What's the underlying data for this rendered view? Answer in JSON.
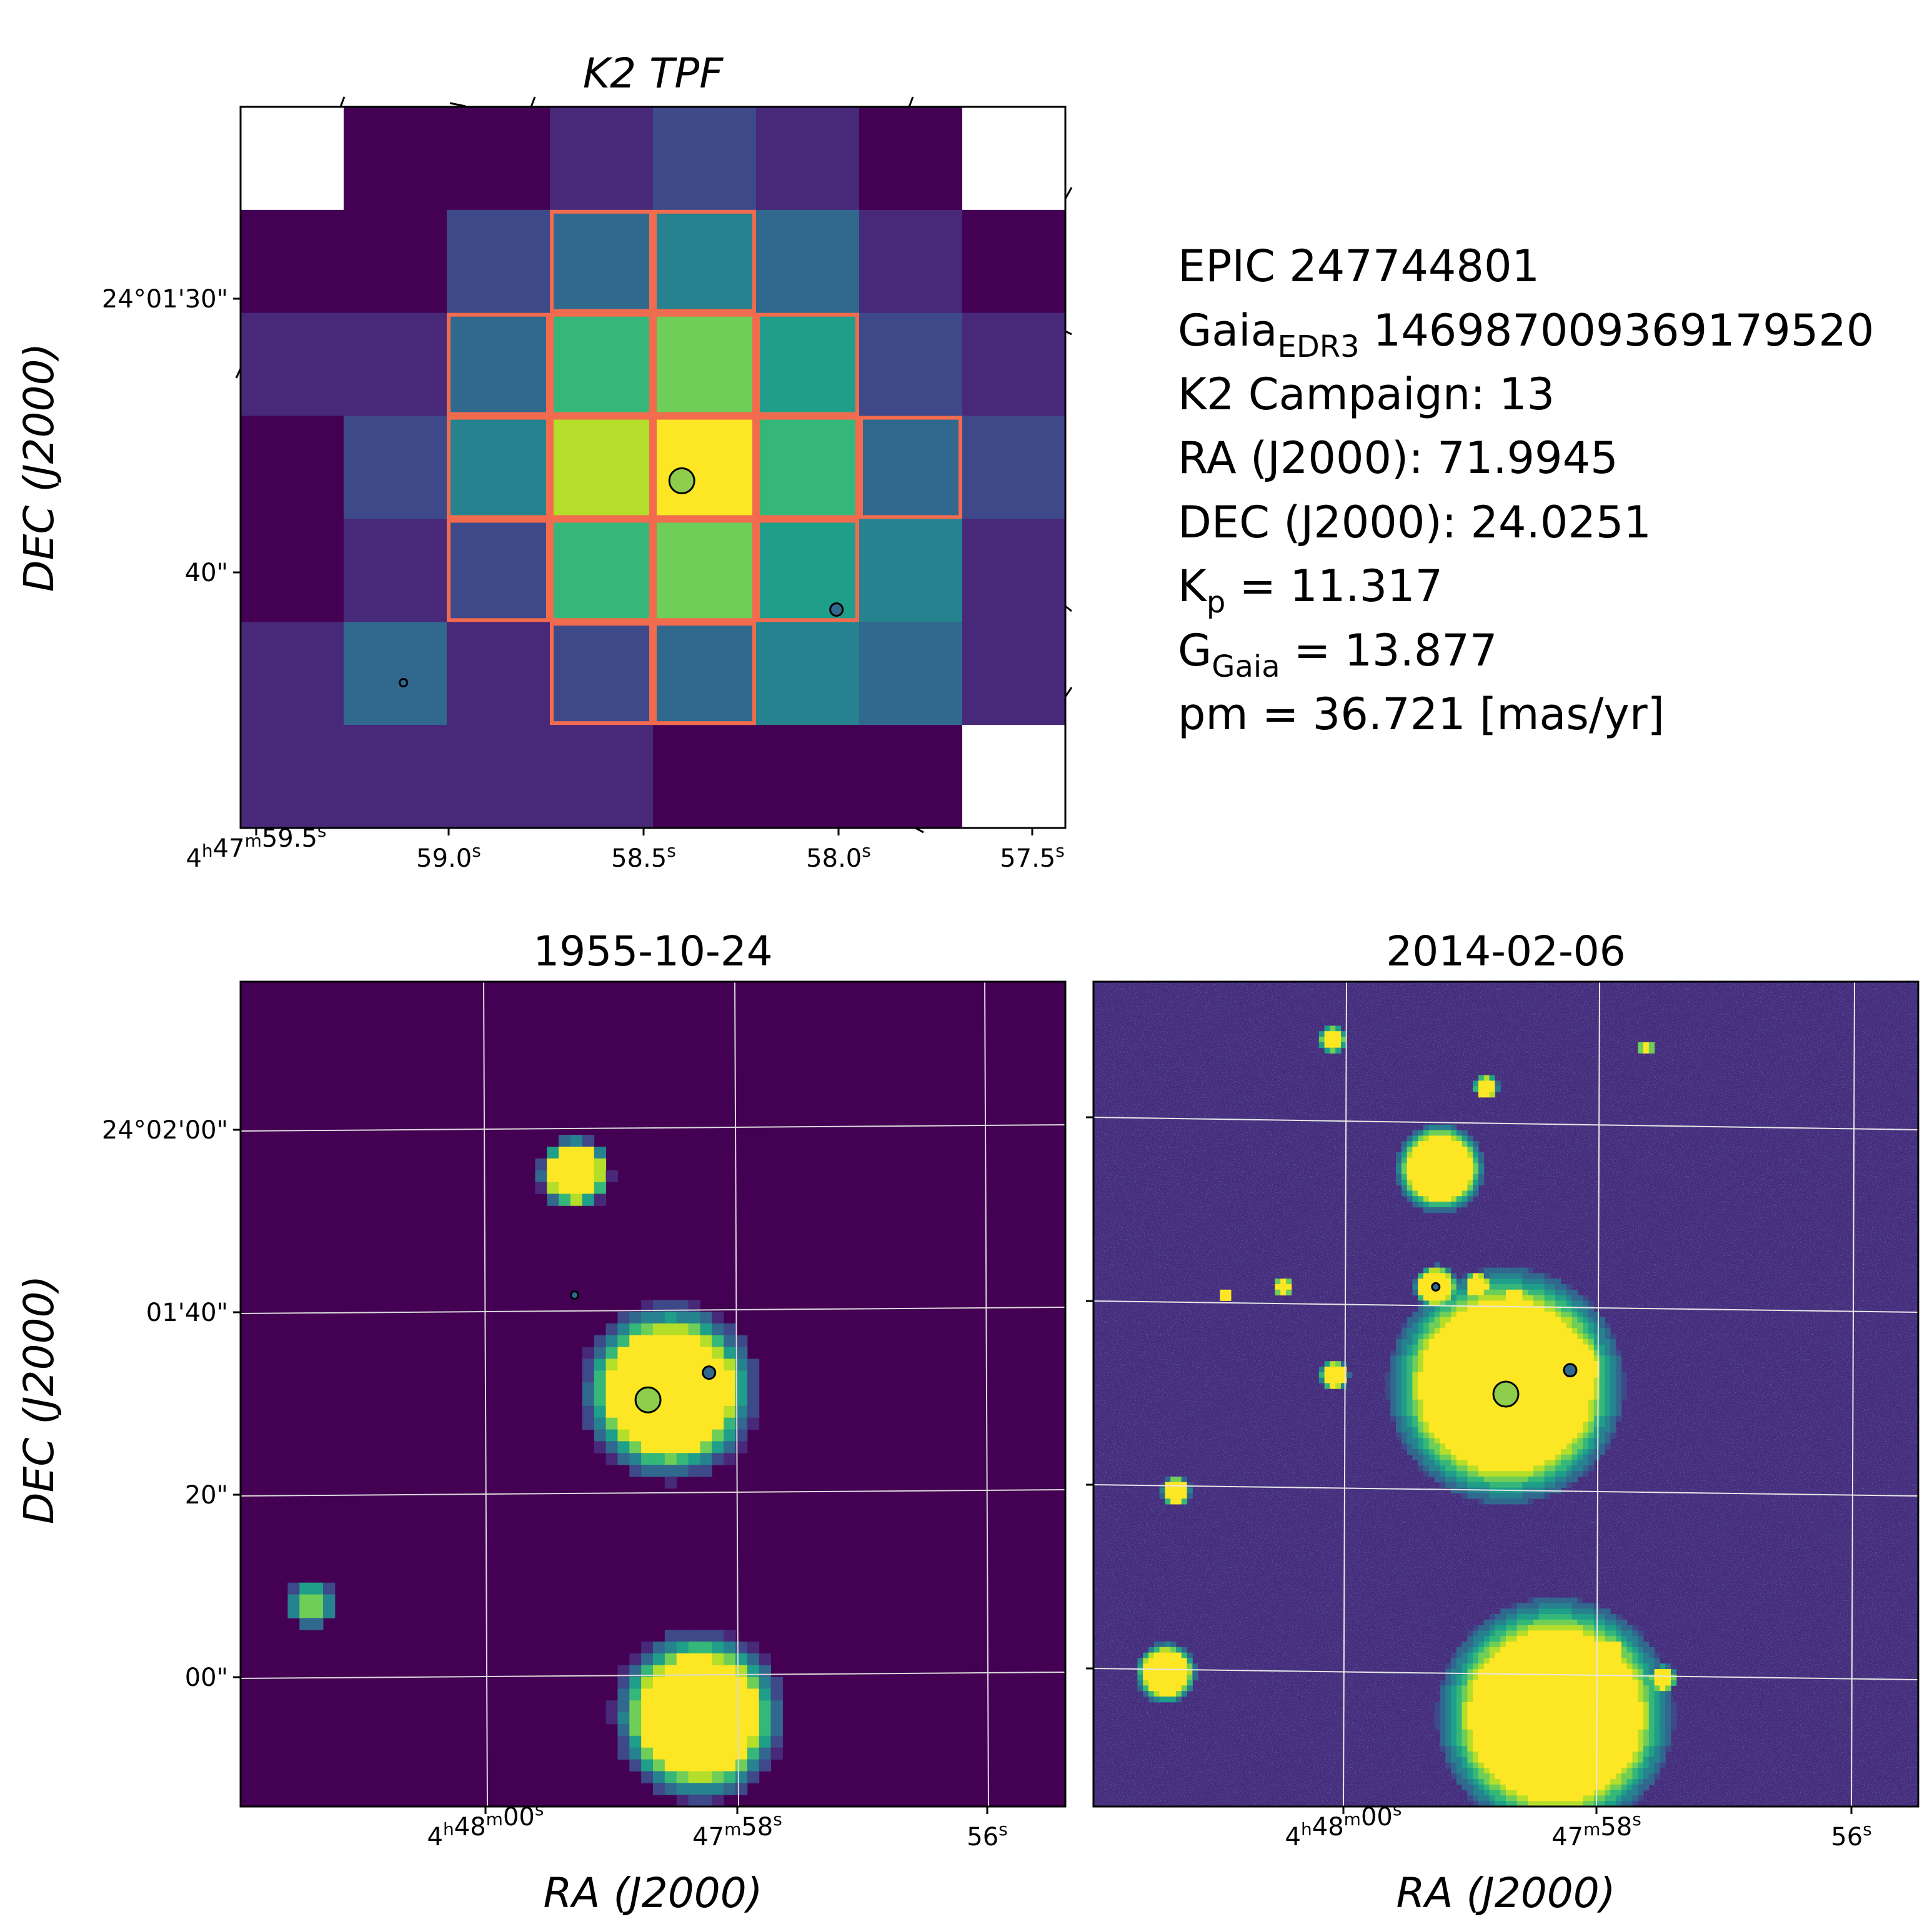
{
  "colors": {
    "viridis": [
      "#440154",
      "#482878",
      "#3e4989",
      "#31688e",
      "#26828e",
      "#1f9e89",
      "#35b779",
      "#6ece58",
      "#b5de2b",
      "#fde725"
    ],
    "aperture": "#f26b4f",
    "target_marker": "#8fce4d",
    "neighbor_marker": "#31688e",
    "grid": "#d9d9d9"
  },
  "chart_data": [
    {
      "type": "heatmap",
      "title": "K2 TPF",
      "ylabel": "DEC (J2000)",
      "xlabel": "",
      "x_ticks": [
        {
          "h": "4",
          "m": "47",
          "s": "59.5"
        },
        {
          "h": "",
          "m": "",
          "s": "59.0"
        },
        {
          "h": "",
          "m": "",
          "s": "58.5"
        },
        {
          "h": "",
          "m": "",
          "s": "58.0"
        },
        {
          "h": "",
          "m": "",
          "s": "57.5"
        }
      ],
      "y_ticks": [
        "24°01'30\"",
        "40\""
      ],
      "rows": 7,
      "cols": 8,
      "pixel_levels": [
        [
          -1,
          0.02,
          0.0,
          0.1,
          0.25,
          0.15,
          0.04,
          -1
        ],
        [
          0.03,
          0.05,
          0.22,
          0.35,
          0.45,
          0.3,
          0.1,
          0.0
        ],
        [
          0.12,
          0.12,
          0.35,
          0.65,
          0.75,
          0.55,
          0.24,
          0.12
        ],
        [
          0.04,
          0.2,
          0.45,
          0.9,
          1.0,
          0.72,
          0.34,
          0.17
        ],
        [
          0.02,
          0.1,
          0.25,
          0.66,
          0.76,
          0.55,
          0.41,
          0.15
        ],
        [
          0.12,
          0.3,
          0.15,
          0.24,
          0.28,
          0.45,
          0.35,
          0.1
        ],
        [
          0.1,
          0.14,
          0.12,
          0.08,
          0.05,
          0.04,
          0.05,
          -1
        ]
      ],
      "aperture": [
        [
          1,
          3
        ],
        [
          1,
          4
        ],
        [
          2,
          2
        ],
        [
          2,
          3
        ],
        [
          2,
          4
        ],
        [
          2,
          5
        ],
        [
          3,
          2
        ],
        [
          3,
          3
        ],
        [
          3,
          4
        ],
        [
          3,
          5
        ],
        [
          3,
          6
        ],
        [
          4,
          2
        ],
        [
          4,
          3
        ],
        [
          4,
          4
        ],
        [
          4,
          5
        ],
        [
          5,
          3
        ],
        [
          5,
          4
        ]
      ],
      "sources": [
        {
          "role": "target",
          "col": 4.28,
          "row": 3.63,
          "size": "large"
        },
        {
          "role": "neighbor",
          "col": 5.78,
          "row": 4.88,
          "size": "small"
        },
        {
          "role": "neighbor",
          "col": 1.58,
          "row": 5.59,
          "size": "tiny"
        }
      ]
    },
    {
      "type": "heatmap",
      "title": "1955-10-24",
      "ylabel": "DEC (J2000)",
      "xlabel": "RA (J2000)",
      "x_ticks": [
        {
          "h": "4",
          "m": "48",
          "s": "00"
        },
        {
          "h": "",
          "m": "47",
          "s": "58"
        },
        {
          "h": "",
          "m": "",
          "s": "56"
        }
      ],
      "y_ticks": [
        "24°02'00\"",
        "01'40\"",
        "20\"",
        "00\""
      ],
      "sources": [
        {
          "role": "target",
          "x": 0.494,
          "y": 0.507,
          "size": "large"
        },
        {
          "role": "neighbor",
          "x": 0.568,
          "y": 0.474,
          "size": "small"
        },
        {
          "role": "neighbor",
          "x": 0.405,
          "y": 0.38,
          "size": "tiny"
        }
      ],
      "blobs": [
        {
          "x": 0.405,
          "y": 0.232,
          "r": 0.025,
          "peak": 1.0
        },
        {
          "x": 0.52,
          "y": 0.497,
          "r": 0.06,
          "peak": 1.0
        },
        {
          "x": 0.568,
          "y": 0.48,
          "r": 0.025,
          "peak": 0.9
        },
        {
          "x": 0.556,
          "y": 0.89,
          "r": 0.058,
          "peak": 1.0
        },
        {
          "x": 0.086,
          "y": 0.755,
          "r": 0.018,
          "peak": 0.5
        }
      ]
    },
    {
      "type": "heatmap",
      "title": "2014-02-06",
      "ylabel": "",
      "xlabel": "RA (J2000)",
      "x_ticks": [
        {
          "h": "4",
          "m": "48",
          "s": "00"
        },
        {
          "h": "",
          "m": "47",
          "s": "58"
        },
        {
          "h": "",
          "m": "",
          "s": "56"
        }
      ],
      "y_ticks": [],
      "sources": [
        {
          "role": "target",
          "x": 0.5,
          "y": 0.5,
          "size": "large"
        },
        {
          "role": "neighbor",
          "x": 0.578,
          "y": 0.471,
          "size": "small"
        },
        {
          "role": "neighbor",
          "x": 0.415,
          "y": 0.37,
          "size": "tiny"
        }
      ],
      "blobs": [
        {
          "x": 0.5,
          "y": 0.49,
          "r": 0.085,
          "peak": 1.0
        },
        {
          "x": 0.575,
          "y": 0.47,
          "r": 0.03,
          "peak": 1.0
        },
        {
          "x": 0.56,
          "y": 0.89,
          "r": 0.085,
          "peak": 1.0
        },
        {
          "x": 0.42,
          "y": 0.226,
          "r": 0.032,
          "peak": 1.0
        },
        {
          "x": 0.415,
          "y": 0.37,
          "r": 0.016,
          "peak": 1.0
        },
        {
          "x": 0.465,
          "y": 0.368,
          "r": 0.01,
          "peak": 1.0
        },
        {
          "x": 0.51,
          "y": 0.385,
          "r": 0.009,
          "peak": 1.0
        },
        {
          "x": 0.29,
          "y": 0.07,
          "r": 0.01,
          "peak": 1.0
        },
        {
          "x": 0.476,
          "y": 0.128,
          "r": 0.009,
          "peak": 1.0
        },
        {
          "x": 0.292,
          "y": 0.477,
          "r": 0.011,
          "peak": 1.0
        },
        {
          "x": 0.1,
          "y": 0.618,
          "r": 0.011,
          "peak": 1.0
        },
        {
          "x": 0.088,
          "y": 0.838,
          "r": 0.022,
          "peak": 1.0
        },
        {
          "x": 0.63,
          "y": 0.81,
          "r": 0.01,
          "peak": 1.0
        },
        {
          "x": 0.69,
          "y": 0.845,
          "r": 0.01,
          "peak": 1.0
        },
        {
          "x": 0.23,
          "y": 0.37,
          "r": 0.007,
          "peak": 1.0
        },
        {
          "x": 0.16,
          "y": 0.38,
          "r": 0.006,
          "peak": 0.8
        },
        {
          "x": 0.67,
          "y": 0.08,
          "r": 0.006,
          "peak": 0.8
        }
      ]
    }
  ],
  "info": {
    "epic": "EPIC 247744801",
    "gaia_prefix": "Gaia",
    "gaia_sub": "EDR3",
    "gaia_id": "146987009369179520",
    "campaign": "K2 Campaign: 13",
    "ra": "RA (J2000): 71.9945",
    "dec": "DEC (J2000): 24.0251",
    "kp_prefix": "K",
    "kp_sub": "p",
    "kp_value": "= 11.317",
    "g_prefix": "G",
    "g_sub": "Gaia",
    "g_value": "= 13.877",
    "pm": "pm = 36.721 [mas/yr]"
  }
}
